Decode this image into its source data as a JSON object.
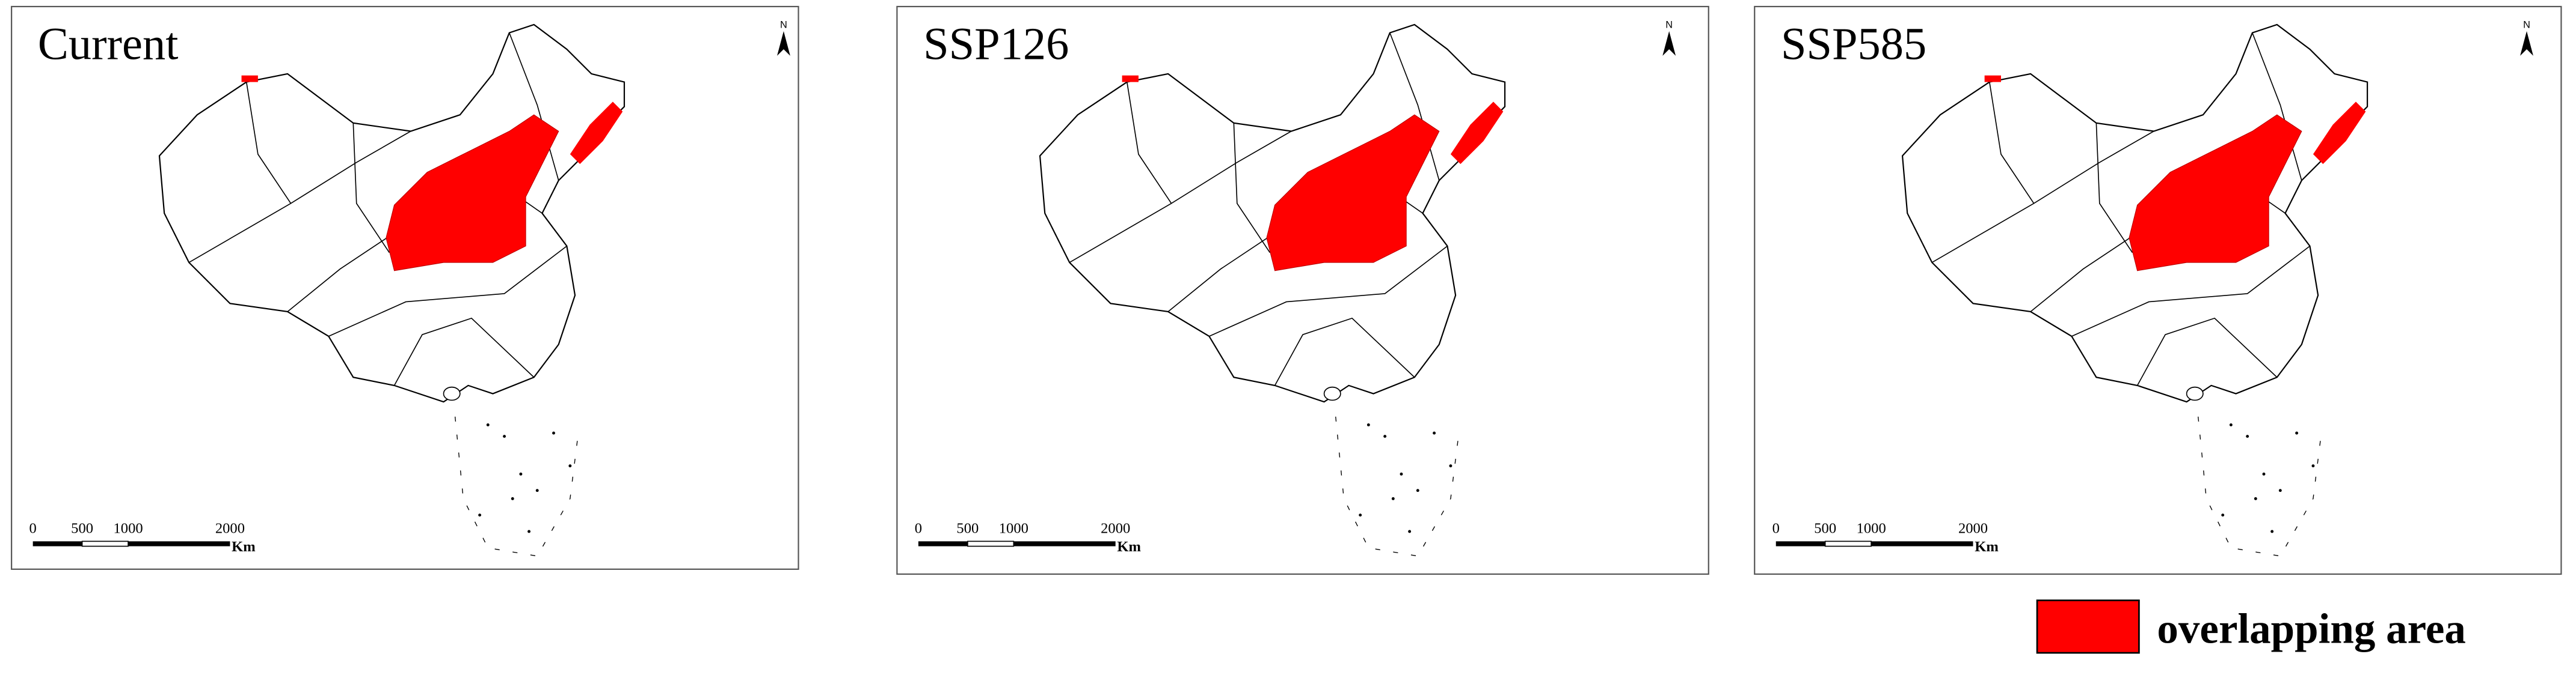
{
  "panels": [
    {
      "title": "Current"
    },
    {
      "title": "SSP126"
    },
    {
      "title": "SSP585"
    }
  ],
  "scale_bar": {
    "labels": [
      "0",
      "500",
      "1000",
      "2000"
    ],
    "unit": "Km"
  },
  "north": "N",
  "legend": {
    "label": "overlapping area"
  }
}
